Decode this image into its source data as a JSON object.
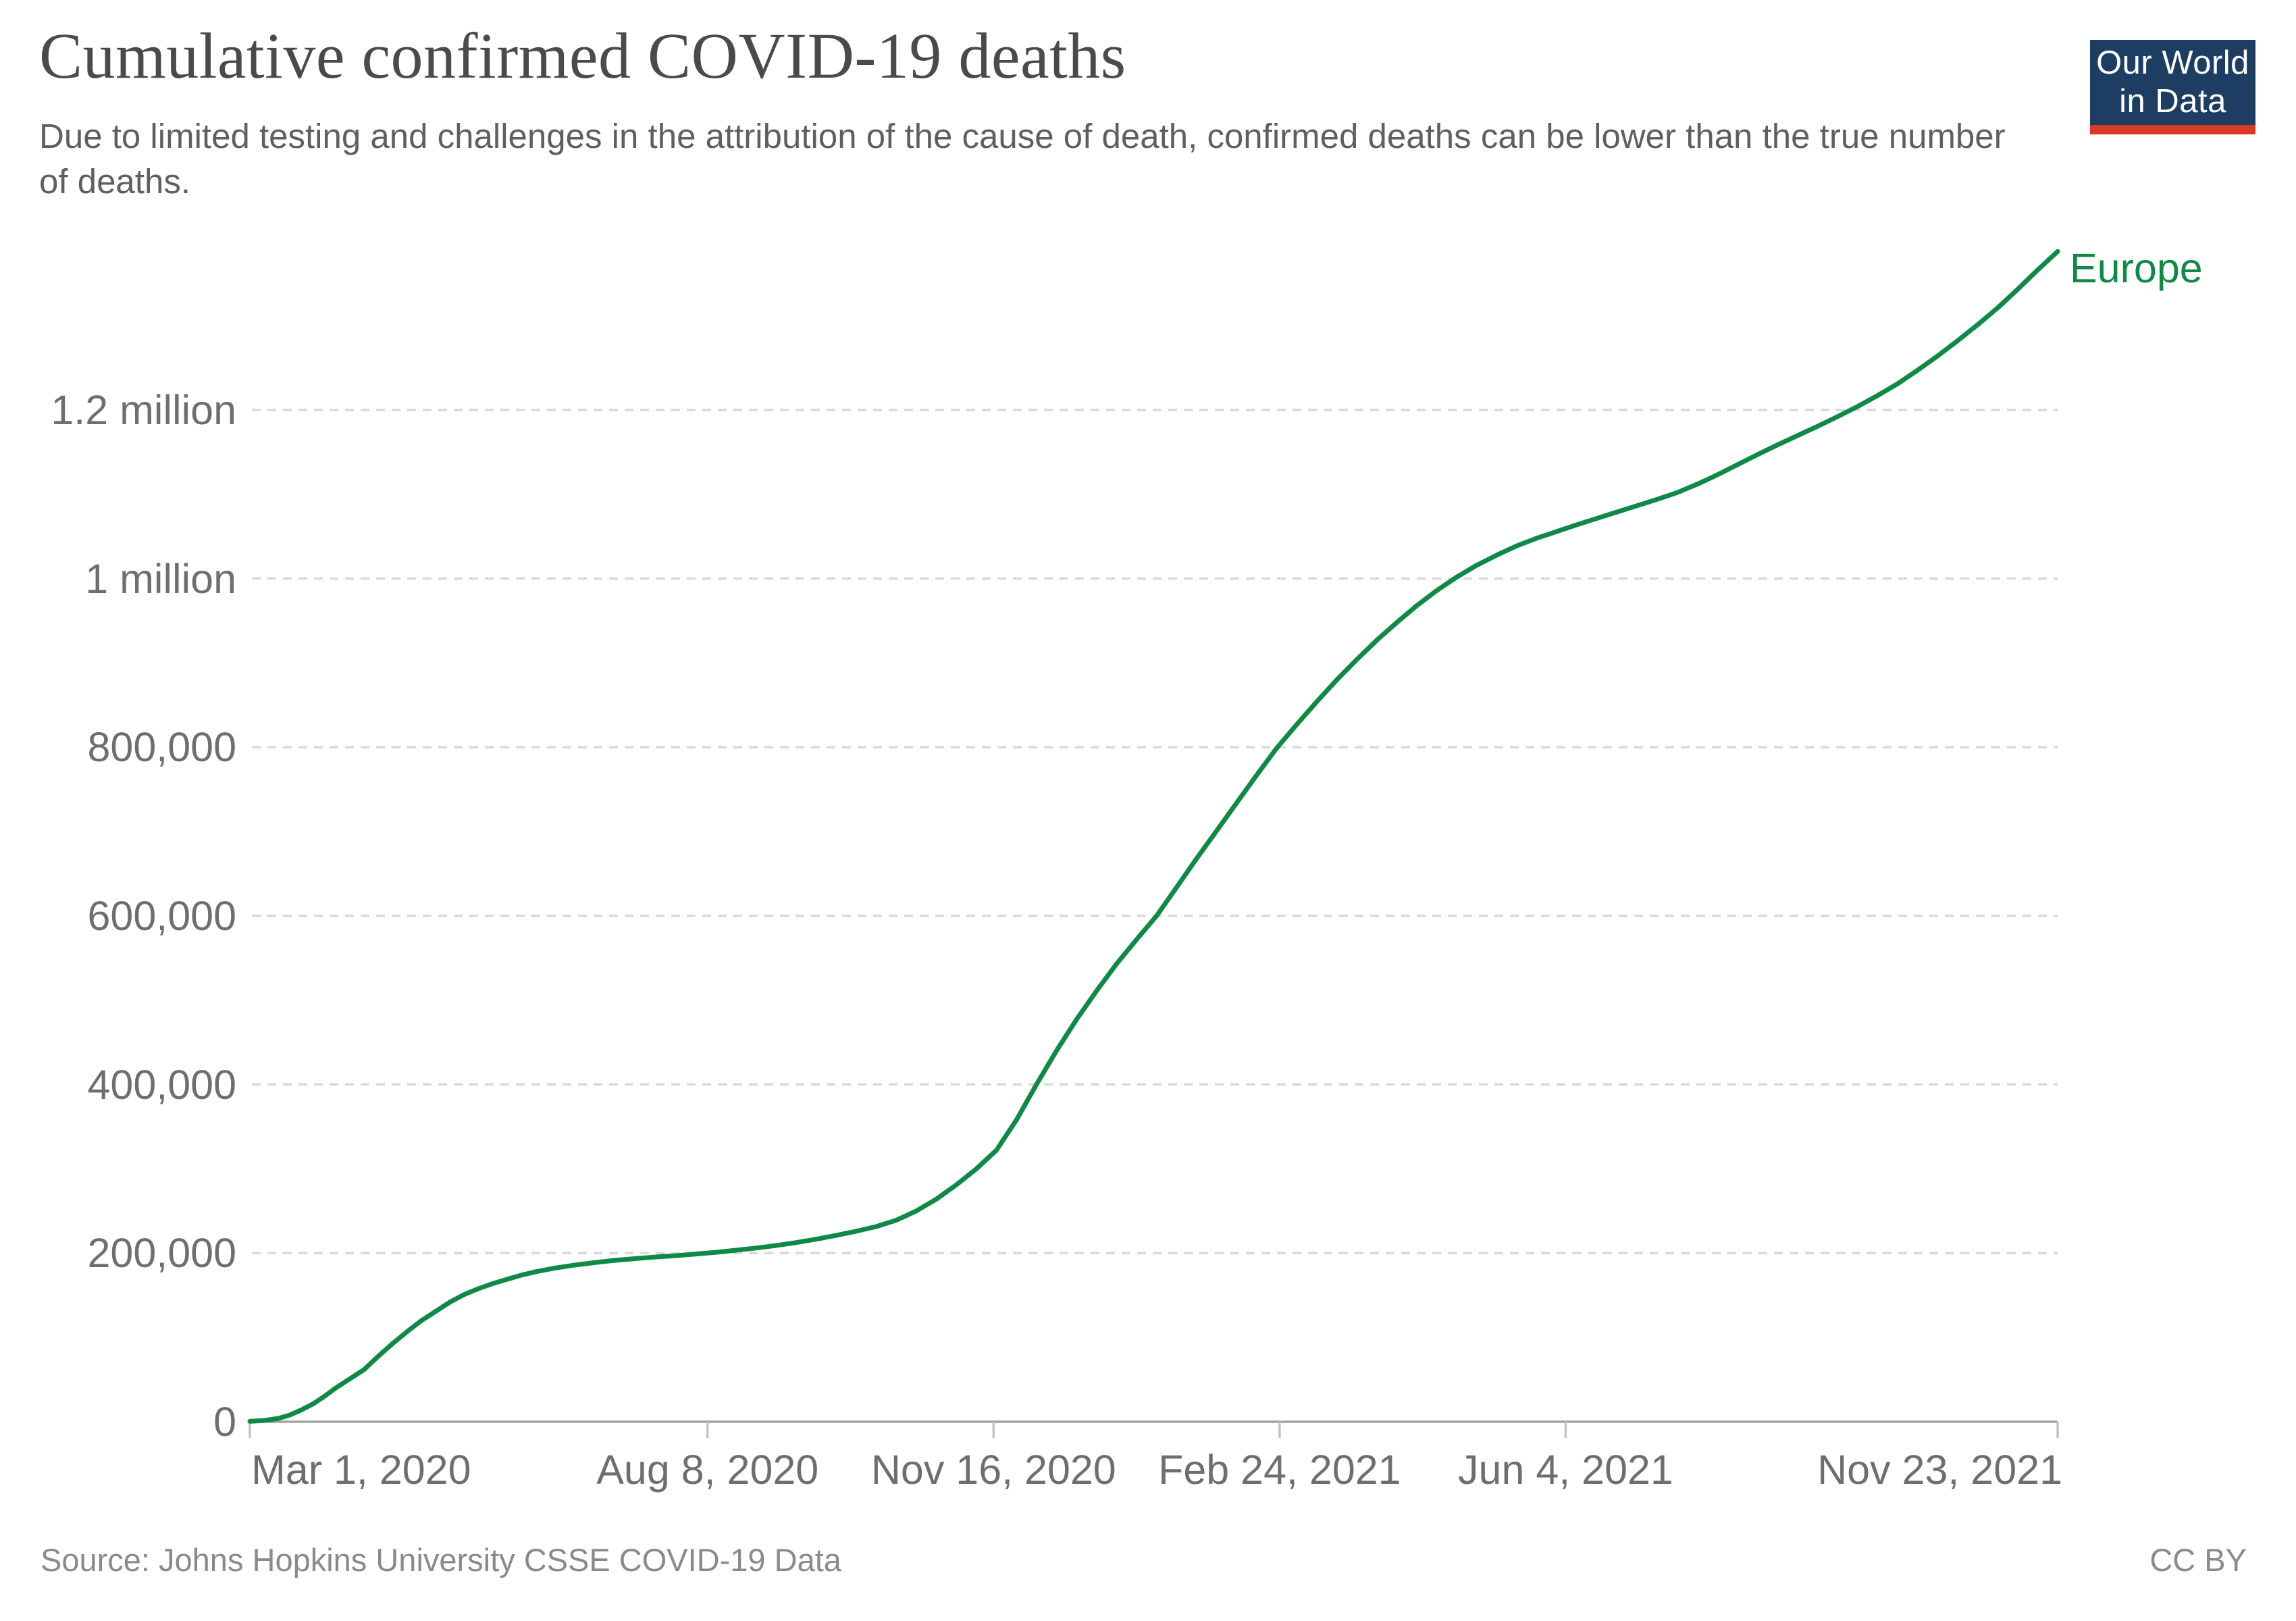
{
  "header": {
    "title": "Cumulative confirmed COVID-19 deaths",
    "subtitle": "Due to limited testing and challenges in the attribution of the cause of death, confirmed deaths can be lower than the true number of deaths.",
    "logo": {
      "line1": "Our World",
      "line2": "in Data"
    }
  },
  "footer": {
    "source": "Source: Johns Hopkins University CSSE COVID-19 Data",
    "license": "CC BY"
  },
  "colors": {
    "series_green": "#0e8a46",
    "gridline": "#d9d9d9",
    "axis_line": "#a3a3a3",
    "tick_mark": "#c4c4c4",
    "title_text": "#4a4a4a",
    "subtitle_text": "#5f5f5f",
    "tick_text": "#6e6e6e",
    "footer_text": "#8a8a8a",
    "logo_bg": "#1d3d63",
    "logo_red": "#db3a22"
  },
  "chart_data": {
    "type": "line",
    "title": "Cumulative confirmed COVID-19 deaths",
    "xlabel": "",
    "ylabel": "",
    "grid": "horizontal-dashed",
    "legend_position": "end-of-line",
    "x_axis": {
      "unit": "days since Mar 1, 2020",
      "day_min": 0,
      "day_max": 632,
      "ticks": [
        {
          "label": "Mar 1, 2020",
          "day": 0,
          "anchor": "start"
        },
        {
          "label": "Aug 8, 2020",
          "day": 160,
          "anchor": "middle"
        },
        {
          "label": "Nov 16, 2020",
          "day": 260,
          "anchor": "middle"
        },
        {
          "label": "Feb 24, 2021",
          "day": 360,
          "anchor": "middle"
        },
        {
          "label": "Jun 4, 2021",
          "day": 460,
          "anchor": "middle"
        },
        {
          "label": "Nov 23, 2021",
          "day": 632,
          "anchor": "end"
        }
      ]
    },
    "y_axis": {
      "min": 0,
      "gridline_max": 1200000,
      "ticks": [
        {
          "label": "0",
          "value": 0
        },
        {
          "label": "200,000",
          "value": 200000
        },
        {
          "label": "400,000",
          "value": 400000
        },
        {
          "label": "600,000",
          "value": 600000
        },
        {
          "label": "800,000",
          "value": 800000
        },
        {
          "label": "1 million",
          "value": 1000000
        },
        {
          "label": "1.2 million",
          "value": 1200000
        }
      ]
    },
    "series": [
      {
        "name": "Europe",
        "color": "#0e8a46",
        "points": [
          [
            0,
            500
          ],
          [
            5,
            1500
          ],
          [
            10,
            4000
          ],
          [
            14,
            8000
          ],
          [
            18,
            14000
          ],
          [
            22,
            21000
          ],
          [
            26,
            30000
          ],
          [
            30,
            40000
          ],
          [
            35,
            51000
          ],
          [
            40,
            62000
          ],
          [
            45,
            78000
          ],
          [
            50,
            93000
          ],
          [
            55,
            107000
          ],
          [
            60,
            120000
          ],
          [
            65,
            131000
          ],
          [
            70,
            142000
          ],
          [
            75,
            151000
          ],
          [
            80,
            158000
          ],
          [
            85,
            164000
          ],
          [
            90,
            169000
          ],
          [
            95,
            174000
          ],
          [
            100,
            178000
          ],
          [
            107,
            182500
          ],
          [
            114,
            186000
          ],
          [
            121,
            189000
          ],
          [
            128,
            191500
          ],
          [
            135,
            193500
          ],
          [
            142,
            195500
          ],
          [
            149,
            197000
          ],
          [
            156,
            199000
          ],
          [
            163,
            201000
          ],
          [
            170,
            203500
          ],
          [
            177,
            206000
          ],
          [
            184,
            209000
          ],
          [
            191,
            212500
          ],
          [
            198,
            216500
          ],
          [
            205,
            221000
          ],
          [
            212,
            226000
          ],
          [
            219,
            231500
          ],
          [
            226,
            239000
          ],
          [
            233,
            250000
          ],
          [
            240,
            264000
          ],
          [
            247,
            281000
          ],
          [
            254,
            300000
          ],
          [
            261,
            322000
          ],
          [
            268,
            358000
          ],
          [
            275,
            400000
          ],
          [
            282,
            440000
          ],
          [
            289,
            477000
          ],
          [
            296,
            511000
          ],
          [
            303,
            543000
          ],
          [
            310,
            572000
          ],
          [
            317,
            600000
          ],
          [
            324,
            634000
          ],
          [
            331,
            668000
          ],
          [
            338,
            701000
          ],
          [
            345,
            734000
          ],
          [
            352,
            767000
          ],
          [
            359,
            799000
          ],
          [
            366,
            827000
          ],
          [
            373,
            854000
          ],
          [
            380,
            880000
          ],
          [
            387,
            904000
          ],
          [
            394,
            927000
          ],
          [
            401,
            948000
          ],
          [
            408,
            968000
          ],
          [
            415,
            986000
          ],
          [
            422,
            1002000
          ],
          [
            429,
            1016000
          ],
          [
            436,
            1028000
          ],
          [
            443,
            1039000
          ],
          [
            450,
            1048000
          ],
          [
            457,
            1056000
          ],
          [
            464,
            1064000
          ],
          [
            471,
            1071500
          ],
          [
            478,
            1079000
          ],
          [
            485,
            1086500
          ],
          [
            492,
            1094000
          ],
          [
            499,
            1102000
          ],
          [
            506,
            1112000
          ],
          [
            513,
            1123000
          ],
          [
            520,
            1135000
          ],
          [
            527,
            1147000
          ],
          [
            534,
            1158500
          ],
          [
            541,
            1169500
          ],
          [
            548,
            1180500
          ],
          [
            555,
            1192000
          ],
          [
            562,
            1204000
          ],
          [
            569,
            1217000
          ],
          [
            576,
            1231000
          ],
          [
            583,
            1247000
          ],
          [
            590,
            1264000
          ],
          [
            597,
            1282000
          ],
          [
            604,
            1301000
          ],
          [
            611,
            1321000
          ],
          [
            618,
            1343000
          ],
          [
            625,
            1366000
          ],
          [
            632,
            1388000
          ]
        ]
      }
    ]
  }
}
